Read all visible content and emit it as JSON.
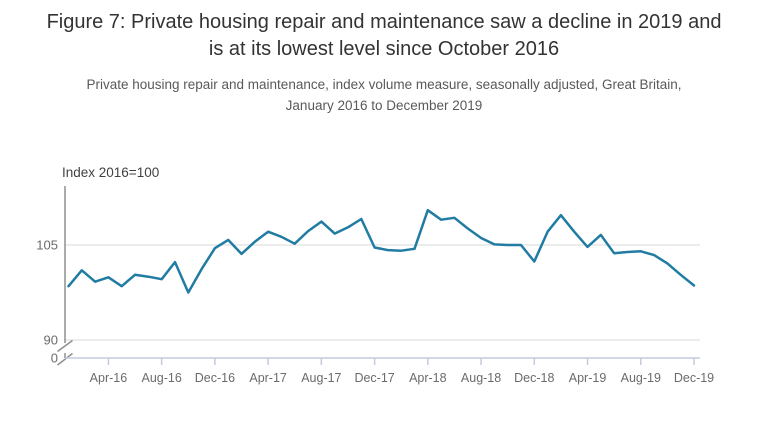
{
  "header": {
    "title": "Figure 7: Private housing repair and maintenance saw a decline in 2019 and is at its lowest level since October 2016",
    "subtitle": "Private housing repair and maintenance, index volume measure, seasonally adjusted, Great Britain, January 2016 to December 2019"
  },
  "chart_data": {
    "type": "line",
    "title": "Figure 7: Private housing repair and maintenance saw a decline in 2019 and is at its lowest level since October 2016",
    "subtitle": "Private housing repair and maintenance, index volume measure, seasonally adjusted, Great Britain, January 2016 to December 2019",
    "series_name": "Private housing repair and maintenance, index volume measure, seasonally adjusted",
    "y_axis_label": "Index 2016=100",
    "xlabel": "",
    "ylabel": "Index 2016=100",
    "x": [
      "Jan-16",
      "Feb-16",
      "Mar-16",
      "Apr-16",
      "May-16",
      "Jun-16",
      "Jul-16",
      "Aug-16",
      "Sep-16",
      "Oct-16",
      "Nov-16",
      "Dec-16",
      "Jan-17",
      "Feb-17",
      "Mar-17",
      "Apr-17",
      "May-17",
      "Jun-17",
      "Jul-17",
      "Aug-17",
      "Sep-17",
      "Oct-17",
      "Nov-17",
      "Dec-17",
      "Jan-18",
      "Feb-18",
      "Mar-18",
      "Apr-18",
      "May-18",
      "Jun-18",
      "Jul-18",
      "Aug-18",
      "Sep-18",
      "Oct-18",
      "Nov-18",
      "Dec-18",
      "Jan-19",
      "Feb-19",
      "Mar-19",
      "Apr-19",
      "May-19",
      "Jun-19",
      "Jul-19",
      "Aug-19",
      "Sep-19",
      "Oct-19",
      "Nov-19",
      "Dec-19"
    ],
    "values": [
      98.5,
      101.0,
      99.2,
      99.9,
      98.5,
      100.3,
      100.0,
      99.6,
      102.3,
      97.5,
      101.2,
      104.5,
      105.8,
      103.6,
      105.5,
      107.1,
      106.3,
      105.2,
      107.2,
      108.7,
      106.8,
      107.8,
      109.1,
      104.6,
      104.2,
      104.1,
      104.4,
      110.5,
      109.0,
      109.3,
      107.6,
      106.1,
      105.1,
      105.0,
      105.0,
      102.4,
      107.1,
      109.7,
      107.1,
      104.7,
      106.6,
      103.7,
      103.9,
      104.0,
      103.4,
      102.1,
      100.3,
      98.6
    ],
    "x_tick_labels": [
      "Apr-16",
      "Aug-16",
      "Dec-16",
      "Apr-17",
      "Aug-17",
      "Dec-17",
      "Apr-18",
      "Aug-18",
      "Dec-18",
      "Apr-19",
      "Aug-19",
      "Dec-19"
    ],
    "y_tick_labels": [
      "105",
      "90",
      "0"
    ],
    "y_axis_break": true,
    "ylim_displayed": [
      90,
      112
    ],
    "grid": "horizontal",
    "legend": "none",
    "colors": {
      "line": "#217ca3",
      "gridline": "#d9d9d9",
      "axis": "#8f8f8f",
      "x_axis": "#c3cbdd",
      "tick_text": "#6b6b6b",
      "title_text": "#333333",
      "subtitle_text": "#595959",
      "unit_label_text": "#414141"
    }
  }
}
